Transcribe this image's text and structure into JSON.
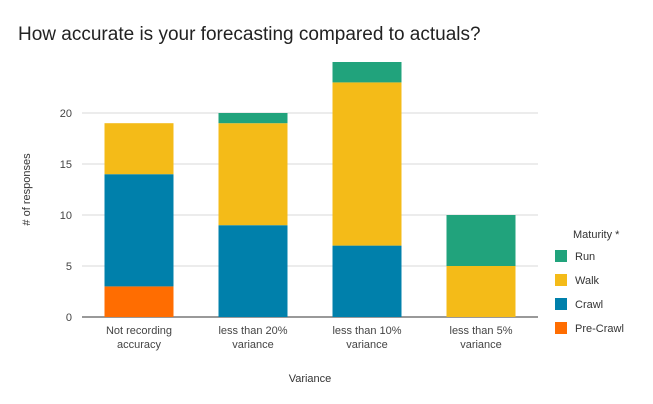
{
  "chart_data": {
    "type": "bar",
    "stacked": true,
    "title": "How accurate is your forecasting compared to actuals?",
    "xlabel": "Variance",
    "ylabel": "# of responses",
    "ylim": [
      0,
      25
    ],
    "yticks": [
      0,
      5,
      10,
      15,
      20
    ],
    "grid": true,
    "categories": [
      [
        "Not recording",
        "accuracy"
      ],
      [
        "less than 20%",
        "variance"
      ],
      [
        "less than 10%",
        "variance"
      ],
      [
        "less than 5%",
        "variance"
      ]
    ],
    "series": [
      {
        "name": "Pre-Crawl",
        "color": "#ff6d01",
        "values": [
          3,
          0,
          0,
          0
        ]
      },
      {
        "name": "Crawl",
        "color": "#0080ab",
        "values": [
          11,
          9,
          7,
          0
        ]
      },
      {
        "name": "Walk",
        "color": "#f4bb18",
        "values": [
          5,
          10,
          16,
          5
        ]
      },
      {
        "name": "Run",
        "color": "#21a37c",
        "values": [
          0,
          1,
          2,
          5
        ]
      }
    ],
    "legend": {
      "title": "Maturity *",
      "position": "right",
      "order": [
        "Run",
        "Walk",
        "Crawl",
        "Pre-Crawl"
      ]
    }
  }
}
